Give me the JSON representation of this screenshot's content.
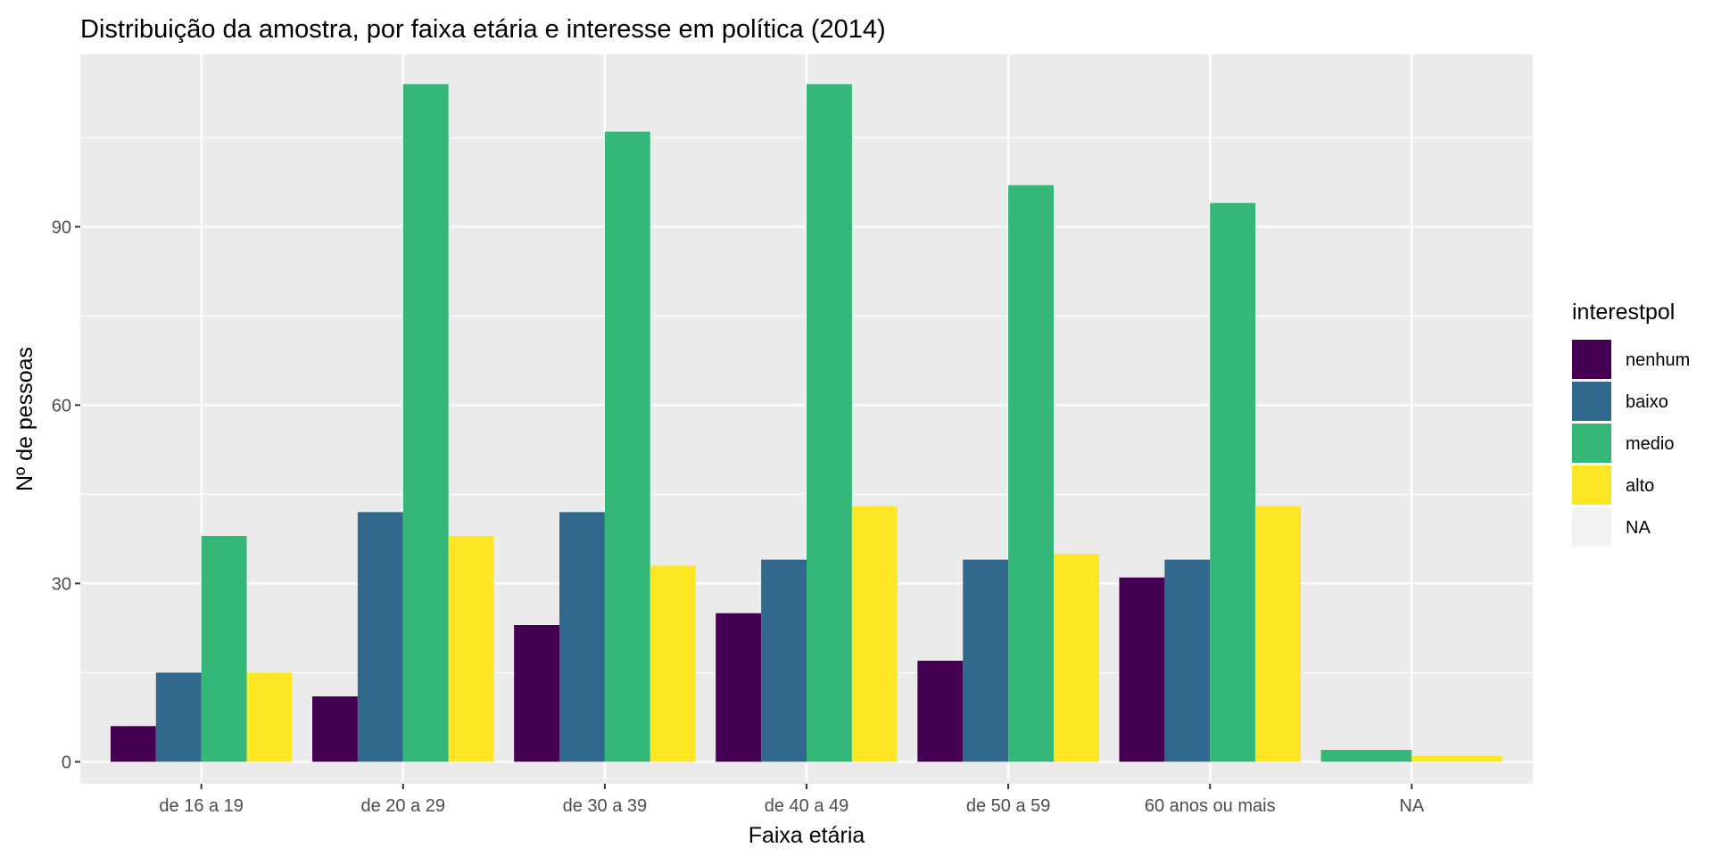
{
  "chart_data": {
    "type": "bar",
    "title": "Distribuição da amostra, por faixa etária e interesse em política (2014)",
    "xlabel": "Faixa etária",
    "ylabel": "Nº de pessoas",
    "ylim": [
      -3.7,
      119
    ],
    "yticks": [
      0,
      30,
      60,
      90
    ],
    "grid": true,
    "legend_position": "right",
    "legend_title": "interestpol",
    "categories": [
      "de 16 a 19",
      "de 20 a 29",
      "de 30 a 39",
      "de 40 a 49",
      "de 50 a 59",
      "60 anos ou mais",
      "NA"
    ],
    "series": [
      {
        "name": "nenhum",
        "color": "#440154",
        "values": [
          6,
          11,
          23,
          25,
          17,
          31,
          null
        ]
      },
      {
        "name": "baixo",
        "color": "#31688E",
        "values": [
          15,
          42,
          42,
          34,
          34,
          34,
          null
        ]
      },
      {
        "name": "medio",
        "color": "#35B779",
        "values": [
          38,
          114,
          106,
          114,
          97,
          94,
          2
        ]
      },
      {
        "name": "alto",
        "color": "#FDE725",
        "values": [
          15,
          38,
          33,
          43,
          35,
          43,
          1
        ]
      },
      {
        "name": "NA",
        "color": "#F2F2F2",
        "values": [
          null,
          null,
          null,
          null,
          null,
          null,
          null
        ]
      }
    ]
  }
}
